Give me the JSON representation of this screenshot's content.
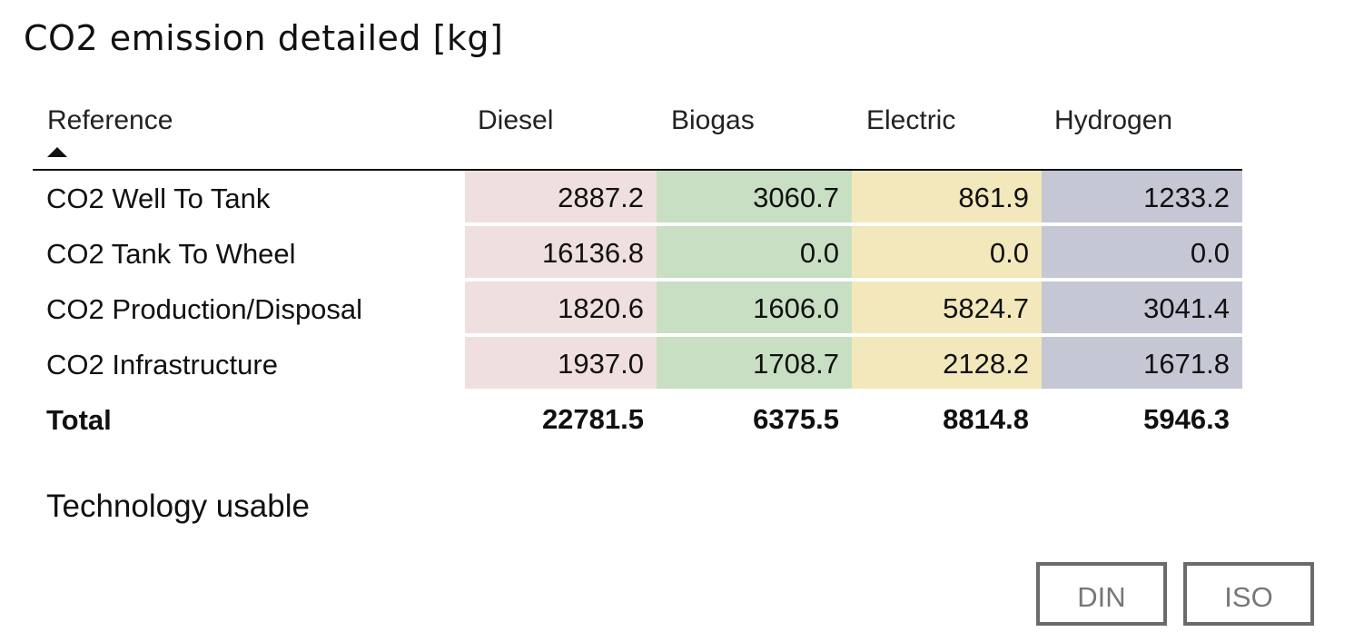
{
  "title": "CO2 emission detailed [kg]",
  "table": {
    "columns": [
      "Reference",
      "Diesel",
      "Biogas",
      "Electric",
      "Hydrogen"
    ],
    "sort": {
      "column": "Reference",
      "direction": "ascending"
    },
    "column_colors": [
      "#efe0df",
      "#c8dfc3",
      "#f2e8bb",
      "#c5c7d4"
    ],
    "rows": [
      {
        "label": "CO2 Well To Tank",
        "values": [
          "2887.2",
          "3060.7",
          "861.9",
          "1233.2"
        ]
      },
      {
        "label": "CO2 Tank To Wheel",
        "values": [
          "16136.8",
          "0.0",
          "0.0",
          "0.0"
        ]
      },
      {
        "label": "CO2 Production/Disposal",
        "values": [
          "1820.6",
          "1606.0",
          "5824.7",
          "3041.4"
        ]
      },
      {
        "label": "CO2 Infrastructure",
        "values": [
          "1937.0",
          "1708.7",
          "2128.2",
          "1671.8"
        ]
      }
    ],
    "total": {
      "label": "Total",
      "values": [
        "22781.5",
        "6375.5",
        "8814.8",
        "5946.3"
      ]
    }
  },
  "footer": {
    "label": "Technology usable",
    "buttons": [
      "DIN",
      "ISO"
    ]
  }
}
